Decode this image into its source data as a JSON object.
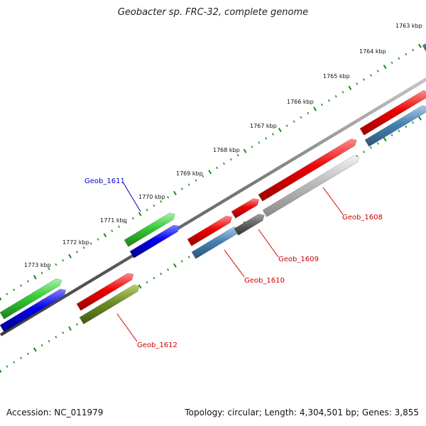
{
  "title": "Geobacter sp. FRC-32, complete genome",
  "footer": {
    "accession": "Accession: NC_011979",
    "summary": "Topology: circular; Length: 4,304,501 bp; Genes: 3,855"
  },
  "ruler": {
    "unit": "kbp",
    "tick_labels": [
      "1763 kbp",
      "1764 kbp",
      "1765 kbp",
      "1766 kbp",
      "1767 kbp",
      "1768 kbp",
      "1769 kbp",
      "1770 kbp",
      "1771 kbp",
      "1772 kbp",
      "1773 kbp"
    ]
  },
  "genes": [
    {
      "name": "Geob_1608",
      "color": "#cc0000"
    },
    {
      "name": "Geob_1609",
      "color": "#cc0000"
    },
    {
      "name": "Geob_1610",
      "color": "#cc0000"
    },
    {
      "name": "Geob_1611",
      "color": "#0000cc"
    },
    {
      "name": "Geob_1612",
      "color": "#cc0000"
    }
  ],
  "colors": {
    "forward_red": "#ee0000",
    "forward_green": "#33cc33",
    "reverse_blue": "#0000ee",
    "reverse_steel": "#4682b4",
    "reverse_olive": "#6b8e23",
    "reverse_gray": "#bbbbbb",
    "backbone": "#777777",
    "ticks": "#1a8a1a"
  }
}
